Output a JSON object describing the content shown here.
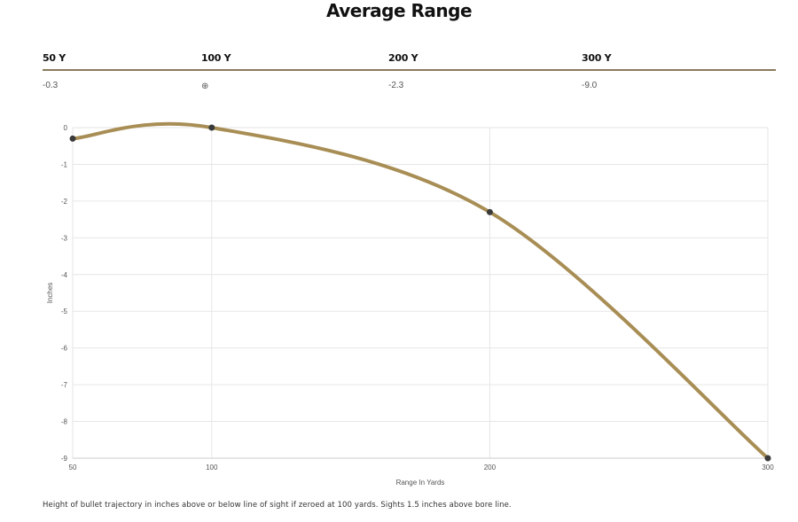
{
  "title": "Average Range",
  "range_table": {
    "headers": [
      "50 Y",
      "100 Y",
      "200 Y",
      "300 Y"
    ],
    "values": [
      "-0.3",
      "⊕",
      "-2.3",
      "-9.0"
    ]
  },
  "chart_data": {
    "type": "line",
    "x": [
      50,
      100,
      200,
      300
    ],
    "series": [
      {
        "values": [
          -0.3,
          0,
          -2.3,
          -9.0
        ]
      }
    ],
    "xlabel": "Range In Yards",
    "ylabel": "Inches",
    "xlim": [
      50,
      300
    ],
    "ylim": [
      -9,
      0
    ],
    "x_ticks": [
      50,
      100,
      200,
      300
    ],
    "y_ticks": [
      0,
      -1,
      -2,
      -3,
      -4,
      -5,
      -6,
      -7,
      -8,
      -9
    ],
    "grid": true,
    "line_color": "#a88e55",
    "point_color": "#3a3a3a"
  },
  "footnote": "Height of bullet trajectory in inches above or below line of sight if zeroed at 100 yards. Sights 1.5 inches above bore line."
}
